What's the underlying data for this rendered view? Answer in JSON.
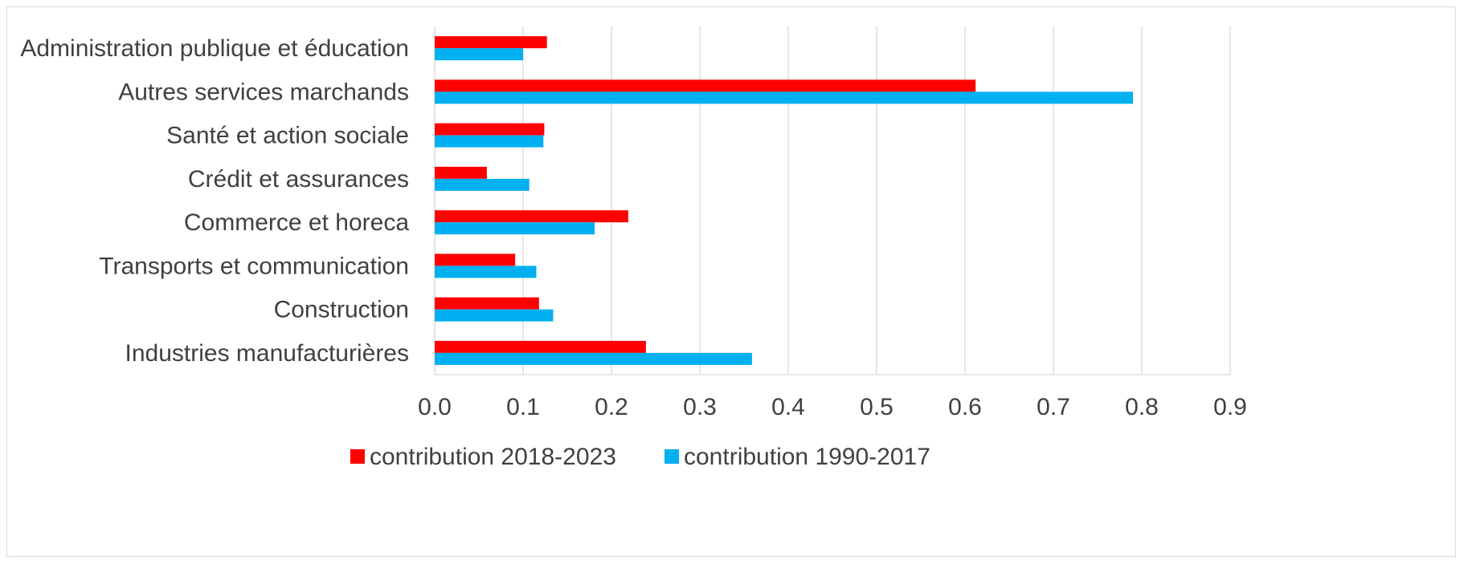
{
  "chart_data": {
    "type": "bar",
    "orientation": "horizontal",
    "categories": [
      "Administration publique et éducation",
      "Autres services marchands",
      "Santé et action sociale",
      "Crédit et assurances",
      "Commerce et horeca",
      "Transports et communication",
      "Construction",
      "Industries manufacturières"
    ],
    "series": [
      {
        "name": "contribution 2018-2023",
        "color": "#ff0000",
        "values": [
          0.127,
          0.612,
          0.124,
          0.059,
          0.219,
          0.091,
          0.118,
          0.239
        ]
      },
      {
        "name": "contribution 1990-2017",
        "color": "#00b0f0",
        "values": [
          0.1,
          0.79,
          0.123,
          0.107,
          0.181,
          0.115,
          0.134,
          0.359
        ]
      }
    ],
    "xlim": [
      0,
      0.9
    ],
    "ticks": [
      "0.0",
      "0.1",
      "0.2",
      "0.3",
      "0.4",
      "0.5",
      "0.6",
      "0.7",
      "0.8",
      "0.9"
    ],
    "tick_values": [
      0,
      0.1,
      0.2,
      0.3,
      0.4,
      0.5,
      0.6,
      0.7,
      0.8,
      0.9
    ],
    "grid": "vertical",
    "legend": "bottom"
  }
}
